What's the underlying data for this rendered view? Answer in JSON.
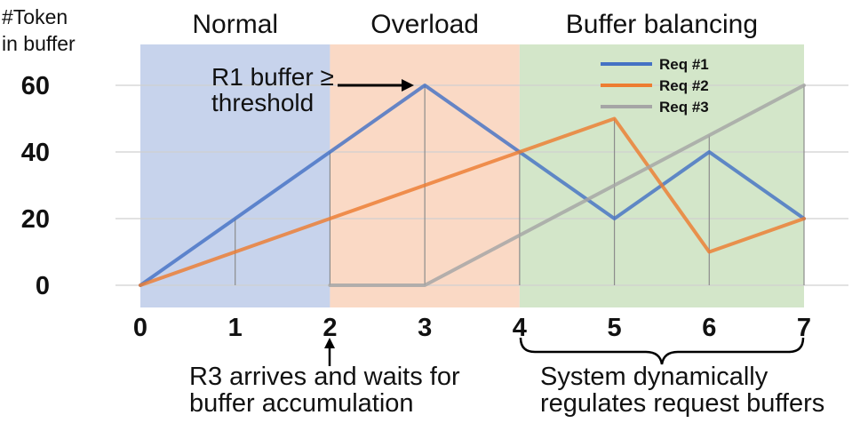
{
  "chart_data": {
    "type": "line",
    "ylabel": [
      "#Token",
      "in buffer"
    ],
    "x": [
      0,
      1,
      2,
      3,
      4,
      5,
      6,
      7
    ],
    "xticks": [
      "0",
      "1",
      "2",
      "3",
      "4",
      "5",
      "6",
      "7"
    ],
    "yticks": [
      "0",
      "20",
      "40",
      "60"
    ],
    "xlim": [
      0,
      7
    ],
    "ylim": [
      0,
      60
    ],
    "grid": "horizontal",
    "legend_position": "top-right",
    "phases": [
      {
        "label": "Normal",
        "x_start": 0,
        "x_end": 2,
        "color": "#c7d3ec"
      },
      {
        "label": "Overload",
        "x_start": 2,
        "x_end": 4,
        "color": "#fad9c5"
      },
      {
        "label": "Buffer balancing",
        "x_start": 4,
        "x_end": 7,
        "color": "#d3e6c9"
      }
    ],
    "series": [
      {
        "name": "Req #1",
        "color": "#4472c4",
        "points": [
          [
            0,
            0
          ],
          [
            1,
            20
          ],
          [
            2,
            40
          ],
          [
            3,
            60
          ],
          [
            4,
            40
          ],
          [
            5,
            20
          ],
          [
            6,
            40
          ],
          [
            7,
            20
          ]
        ]
      },
      {
        "name": "Req #2",
        "color": "#ed7d31",
        "points": [
          [
            0,
            0
          ],
          [
            1,
            10
          ],
          [
            2,
            20
          ],
          [
            3,
            30
          ],
          [
            4,
            40
          ],
          [
            5,
            50
          ],
          [
            6,
            10
          ],
          [
            7,
            20
          ]
        ]
      },
      {
        "name": "Req #3",
        "color": "#a5a5a5",
        "points": [
          [
            2,
            0
          ],
          [
            3,
            0
          ],
          [
            4,
            15
          ],
          [
            5,
            30
          ],
          [
            6,
            45
          ],
          [
            7,
            60
          ]
        ]
      }
    ],
    "annotations": {
      "threshold_line1": "R1 buffer ≥",
      "threshold_line2": "threshold",
      "r3_line1": "R3 arrives and waits for",
      "r3_line2": "buffer accumulation",
      "system_line1": "System dynamically",
      "system_line2": "regulates request buffers"
    }
  }
}
